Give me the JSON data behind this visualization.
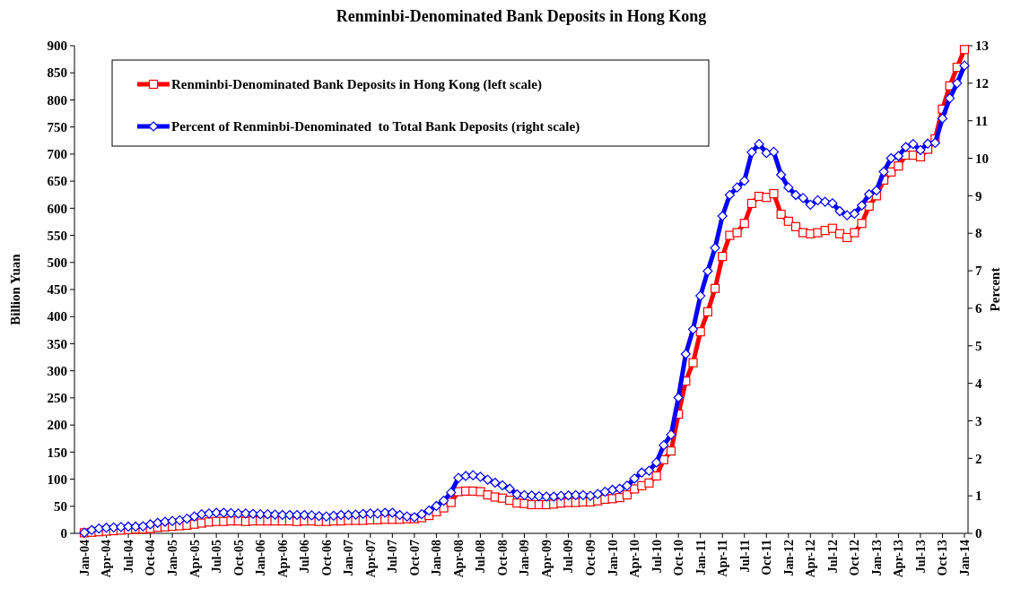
{
  "chart_data": {
    "type": "line",
    "title": "Renminbi-Denominated Bank Deposits in Hong Kong",
    "ylabel": "Billion Yuan",
    "y2label": "Percent",
    "categories": [
      "Jan-04",
      null,
      null,
      "Apr-04",
      null,
      null,
      "Jul-04",
      null,
      null,
      "Oct-04",
      null,
      null,
      "Jan-05",
      null,
      null,
      "Apr-05",
      null,
      null,
      "Jul-05",
      null,
      null,
      "Oct-05",
      null,
      null,
      "Jan-06",
      null,
      null,
      "Apr-06",
      null,
      null,
      "Jul-06",
      null,
      null,
      "Oct-06",
      null,
      null,
      "Jan-07",
      null,
      null,
      "Apr-07",
      null,
      null,
      "Jul-07",
      null,
      null,
      "Oct-07",
      null,
      null,
      "Jan-08",
      null,
      null,
      "Apr-08",
      null,
      null,
      "Jul-08",
      null,
      null,
      "Oct-08",
      null,
      null,
      "Jan-09",
      null,
      null,
      "Apr-09",
      null,
      null,
      "Jul-09",
      null,
      null,
      "Oct-09",
      null,
      null,
      "Jan-10",
      null,
      null,
      "Apr-10",
      null,
      null,
      "Jul-10",
      null,
      null,
      "Oct-10",
      null,
      null,
      "Jan-11",
      null,
      null,
      "Apr-11",
      null,
      null,
      "Jul-11",
      null,
      null,
      "Oct-11",
      null,
      null,
      "Jan-12",
      null,
      null,
      "Apr-12",
      null,
      null,
      "Jul-12",
      null,
      null,
      "Oct-12",
      null,
      null,
      "Jan-13",
      null,
      null,
      "Apr-13",
      null,
      null,
      "Jul-13",
      null,
      null,
      "Oct-13",
      null,
      null,
      "Jan-14"
    ],
    "series": [
      {
        "name": "Renminbi-Denominated Bank Deposits in Hong Kong (left scale)",
        "color": "#ff0000",
        "marker": "square",
        "values": [
          1,
          2,
          3,
          4,
          5,
          6,
          7,
          8,
          8,
          9,
          11,
          12,
          13,
          14,
          15,
          17,
          19,
          21,
          22,
          22,
          23,
          23,
          22,
          23,
          23,
          23,
          23,
          23,
          23,
          22,
          23,
          23,
          22,
          22,
          23,
          23,
          24,
          24,
          24,
          25,
          25,
          26,
          26,
          26,
          27,
          27,
          29,
          33,
          40,
          47,
          57,
          77,
          78,
          78,
          77,
          71,
          67,
          65,
          61,
          56,
          55,
          53,
          53,
          53,
          54,
          56,
          57,
          57,
          58,
          58,
          60,
          63,
          64,
          66,
          71,
          82,
          88,
          93,
          106,
          136,
          152,
          220,
          281,
          315,
          372,
          409,
          452,
          511,
          550,
          555,
          572,
          609,
          622,
          620,
          627,
          589,
          576,
          566,
          555,
          553,
          555,
          559,
          563,
          553,
          546,
          555,
          572,
          604,
          623,
          652,
          667,
          678,
          698,
          698,
          695,
          709,
          728,
          783,
          826,
          860,
          893
        ]
      },
      {
        "name": "Percent of Renminbi-Denominated  to Total Bank Deposits (right scale)",
        "color": "#0000ff",
        "marker": "diamond",
        "axis": "y2",
        "values": [
          0.02,
          0.09,
          0.13,
          0.15,
          0.16,
          0.17,
          0.18,
          0.18,
          0.19,
          0.24,
          0.28,
          0.31,
          0.33,
          0.35,
          0.39,
          0.45,
          0.51,
          0.53,
          0.55,
          0.55,
          0.54,
          0.53,
          0.53,
          0.52,
          0.51,
          0.51,
          0.5,
          0.49,
          0.49,
          0.49,
          0.49,
          0.48,
          0.46,
          0.45,
          0.47,
          0.49,
          0.49,
          0.5,
          0.52,
          0.53,
          0.53,
          0.55,
          0.55,
          0.49,
          0.45,
          0.43,
          0.51,
          0.61,
          0.73,
          0.87,
          1.09,
          1.48,
          1.53,
          1.55,
          1.51,
          1.43,
          1.35,
          1.28,
          1.19,
          1.04,
          1.02,
          1.01,
          0.99,
          0.98,
          0.98,
          1.0,
          1.01,
          1.02,
          1.02,
          1.0,
          1.05,
          1.11,
          1.16,
          1.19,
          1.27,
          1.46,
          1.62,
          1.67,
          1.89,
          2.35,
          2.63,
          3.62,
          4.78,
          5.44,
          6.33,
          6.99,
          7.61,
          8.46,
          9.02,
          9.22,
          9.4,
          10.16,
          10.38,
          10.14,
          10.17,
          9.56,
          9.22,
          9.02,
          8.94,
          8.76,
          8.88,
          8.84,
          8.8,
          8.59,
          8.48,
          8.52,
          8.74,
          9.04,
          9.14,
          9.64,
          10.0,
          10.06,
          10.3,
          10.38,
          10.22,
          10.39,
          10.41,
          11.06,
          11.6,
          12.0,
          12.47
        ]
      }
    ],
    "ylim": [
      0,
      900
    ],
    "yticks": [
      0,
      50,
      100,
      150,
      200,
      250,
      300,
      350,
      400,
      450,
      500,
      550,
      600,
      650,
      700,
      750,
      800,
      850,
      900
    ],
    "y2lim": [
      0,
      13
    ],
    "y2ticks": [
      0,
      1,
      2,
      3,
      4,
      5,
      6,
      7,
      8,
      9,
      10,
      11,
      12,
      13
    ],
    "legend": "top left"
  }
}
